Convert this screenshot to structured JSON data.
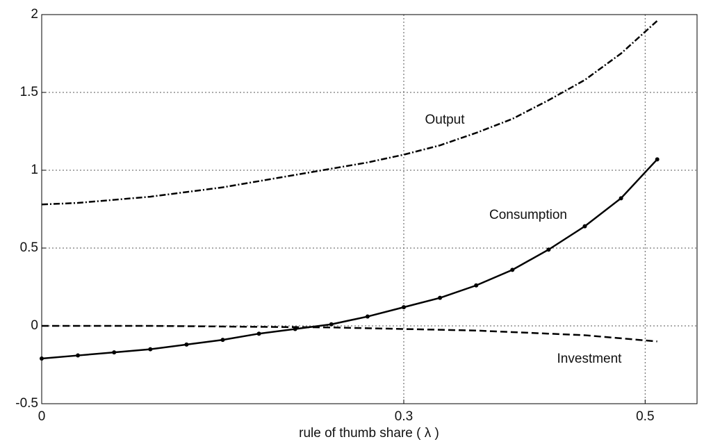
{
  "chart_data": {
    "type": "line",
    "xlabel": "rule of thumb share ( λ )",
    "x": [
      0,
      0.03,
      0.06,
      0.09,
      0.12,
      0.15,
      0.18,
      0.21,
      0.24,
      0.27,
      0.3,
      0.33,
      0.36,
      0.39,
      0.42,
      0.45,
      0.48,
      0.51
    ],
    "series": [
      {
        "name": "Output",
        "color": "#000000",
        "linestyle": "dashdot",
        "marker": "none",
        "values": [
          0.78,
          0.79,
          0.81,
          0.83,
          0.86,
          0.89,
          0.93,
          0.97,
          1.01,
          1.05,
          1.1,
          1.16,
          1.24,
          1.33,
          1.45,
          1.58,
          1.75,
          1.96
        ]
      },
      {
        "name": "Consumption",
        "color": "#000000",
        "linestyle": "solid",
        "marker": "dot",
        "values": [
          -0.21,
          -0.19,
          -0.17,
          -0.15,
          -0.12,
          -0.09,
          -0.05,
          -0.02,
          0.01,
          0.06,
          0.12,
          0.18,
          0.26,
          0.36,
          0.49,
          0.64,
          0.82,
          1.07
        ]
      },
      {
        "name": "Investment",
        "color": "#000000",
        "linestyle": "dashed",
        "marker": "none",
        "values": [
          0,
          0,
          0,
          0,
          -0.002,
          -0.004,
          -0.006,
          -0.008,
          -0.01,
          -0.015,
          -0.02,
          -0.025,
          -0.03,
          -0.04,
          -0.05,
          -0.06,
          -0.08,
          -0.1
        ]
      }
    ],
    "xlim": [
      0,
      0.543
    ],
    "ylim": [
      -0.5,
      2
    ],
    "xticks": [
      0,
      0.3,
      0.5
    ],
    "yticks": [
      -0.5,
      0,
      0.5,
      1,
      1.5,
      2
    ],
    "grid": true,
    "legend": false
  }
}
